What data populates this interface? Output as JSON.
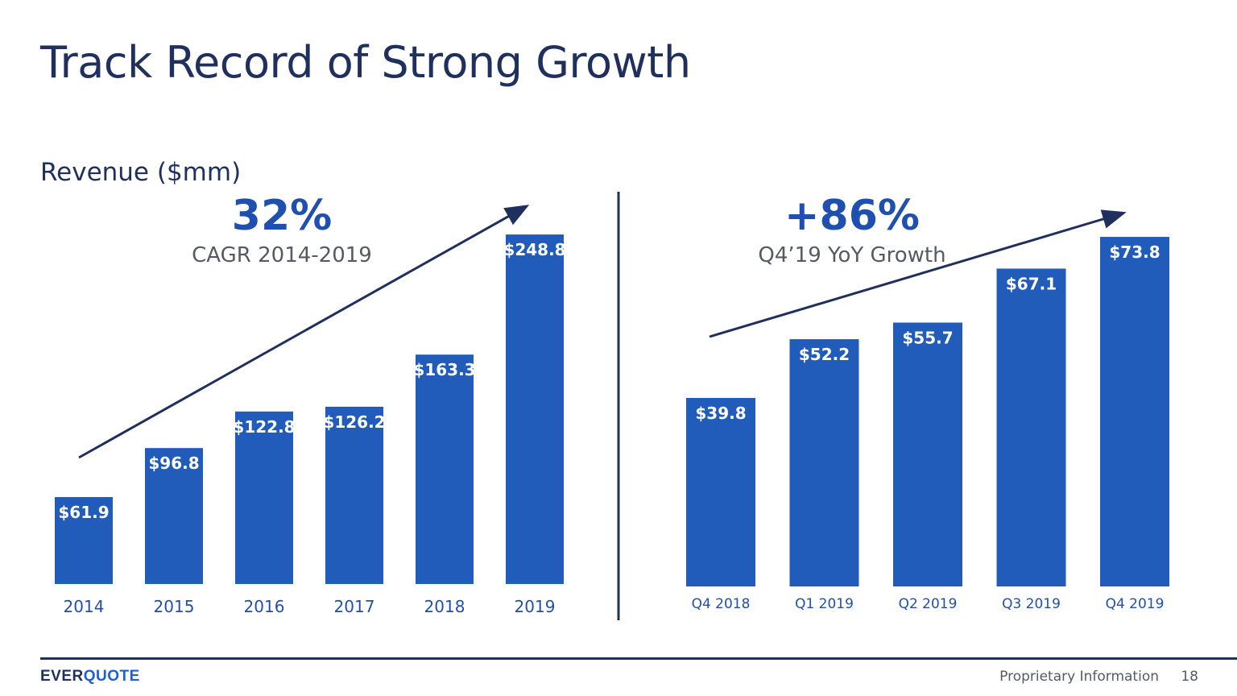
{
  "slide": {
    "title": "Track Record of Strong Growth",
    "subtitle": "Revenue ($mm)",
    "left_kpi": {
      "value": "32%",
      "label": "CAGR 2014-2019"
    },
    "right_kpi": {
      "value": "+86%",
      "label": "Q4’19 YoY Growth"
    },
    "footer": {
      "logo_part1": "EVER",
      "logo_part2": "QUOTE",
      "note": "Proprietary Information",
      "page": "18"
    },
    "colors": {
      "bar": "#215cba",
      "title": "#1f2f5e",
      "kpi": "#1f4fb0",
      "arrow": "#1f2f5e"
    }
  },
  "chart_data": [
    {
      "type": "bar",
      "categories": [
        "2014",
        "2015",
        "2016",
        "2017",
        "2018",
        "2019"
      ],
      "values": [
        61.9,
        96.8,
        122.8,
        126.2,
        163.3,
        248.8
      ],
      "labels": [
        "$61.9",
        "$96.8",
        "$122.8",
        "$126.2",
        "$163.3",
        "$248.8"
      ],
      "ylim": [
        0,
        250
      ]
    },
    {
      "type": "bar",
      "categories": [
        "Q4 2018",
        "Q1 2019",
        "Q2 2019",
        "Q3 2019",
        "Q4 2019"
      ],
      "values": [
        39.8,
        52.2,
        55.7,
        67.1,
        73.8
      ],
      "labels": [
        "$39.8",
        "$52.2",
        "$55.7",
        "$67.1",
        "$73.8"
      ],
      "ylim": [
        0,
        75
      ]
    }
  ]
}
